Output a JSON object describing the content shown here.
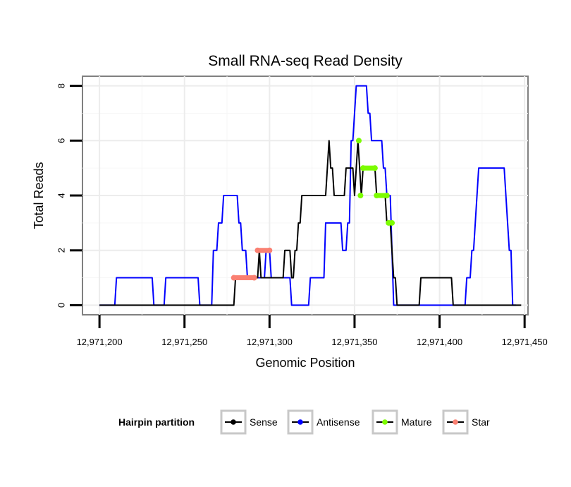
{
  "chart_data": {
    "type": "line",
    "title": "Small RNA-seq Read Density",
    "xlabel": "Genomic Position",
    "ylabel": "Total Reads",
    "xlim": [
      12971190,
      12971452
    ],
    "ylim": [
      -0.35,
      8.35
    ],
    "x_ticks": [
      12971200,
      12971250,
      12971300,
      12971350,
      12971400,
      12971450
    ],
    "x_tick_labels": [
      "12,971,200",
      "12,971,250",
      "12,971,300",
      "12,971,350",
      "12,971,400",
      "12,971,450"
    ],
    "y_ticks": [
      0,
      2,
      4,
      6,
      8
    ],
    "y_tick_labels": [
      "0",
      "2",
      "4",
      "6",
      "8"
    ],
    "grid": true,
    "legend": {
      "title": "Hairpin partition",
      "position": "bottom",
      "entries": [
        "Sense",
        "Antisense",
        "Mature",
        "Star"
      ]
    },
    "series": [
      {
        "name": "Antisense",
        "color": "#0000ff",
        "points": [
          [
            12971200,
            0
          ],
          [
            12971209,
            0
          ],
          [
            12971210,
            1
          ],
          [
            12971231,
            1
          ],
          [
            12971232,
            0
          ],
          [
            12971238,
            0
          ],
          [
            12971239,
            1
          ],
          [
            12971258,
            1
          ],
          [
            12971259,
            0
          ],
          [
            12971266,
            0
          ],
          [
            12971267,
            2
          ],
          [
            12971269,
            2
          ],
          [
            12971270,
            3
          ],
          [
            12971272,
            3
          ],
          [
            12971273,
            4
          ],
          [
            12971281,
            4
          ],
          [
            12971282,
            3
          ],
          [
            12971283,
            3
          ],
          [
            12971284,
            2
          ],
          [
            12971286,
            2
          ],
          [
            12971287,
            1
          ],
          [
            12971297,
            1
          ],
          [
            12971298,
            2
          ],
          [
            12971300,
            2
          ],
          [
            12971301,
            1
          ],
          [
            12971312,
            1
          ],
          [
            12971313,
            0
          ],
          [
            12971323,
            0
          ],
          [
            12971324,
            1
          ],
          [
            12971332,
            1
          ],
          [
            12971333,
            3
          ],
          [
            12971339,
            3
          ],
          [
            12971340,
            3
          ],
          [
            12971342,
            3
          ],
          [
            12971343,
            2
          ],
          [
            12971345,
            2
          ],
          [
            12971346,
            3
          ],
          [
            12971347,
            3
          ],
          [
            12971348,
            6
          ],
          [
            12971349,
            6
          ],
          [
            12971350,
            7
          ],
          [
            12971351,
            8
          ],
          [
            12971357,
            8
          ],
          [
            12971358,
            7
          ],
          [
            12971359,
            7
          ],
          [
            12971360,
            6
          ],
          [
            12971366,
            6
          ],
          [
            12971367,
            5
          ],
          [
            12971368,
            5
          ],
          [
            12971369,
            4
          ],
          [
            12971371,
            4
          ],
          [
            12971372,
            2
          ],
          [
            12971373,
            0
          ],
          [
            12971377,
            0
          ],
          [
            12971415,
            0
          ],
          [
            12971416,
            1
          ],
          [
            12971418,
            1
          ],
          [
            12971419,
            2
          ],
          [
            12971420,
            2
          ],
          [
            12971421,
            3
          ],
          [
            12971422,
            4
          ],
          [
            12971423,
            5
          ],
          [
            12971438,
            5
          ],
          [
            12971439,
            4
          ],
          [
            12971440,
            3
          ],
          [
            12971441,
            2
          ],
          [
            12971442,
            2
          ],
          [
            12971443,
            0
          ],
          [
            12971445,
            0
          ]
        ]
      },
      {
        "name": "Sense",
        "color": "#000000",
        "points": [
          [
            12971200,
            0
          ],
          [
            12971279,
            0
          ],
          [
            12971280,
            1
          ],
          [
            12971293,
            1
          ],
          [
            12971294,
            2
          ],
          [
            12971295,
            1
          ],
          [
            12971308,
            1
          ],
          [
            12971309,
            2
          ],
          [
            12971312,
            2
          ],
          [
            12971313,
            1
          ],
          [
            12971314,
            1
          ],
          [
            12971315,
            2
          ],
          [
            12971316,
            2
          ],
          [
            12971317,
            3
          ],
          [
            12971318,
            3
          ],
          [
            12971319,
            4
          ],
          [
            12971333,
            4
          ],
          [
            12971334,
            5
          ],
          [
            12971335,
            6
          ],
          [
            12971336,
            5
          ],
          [
            12971337,
            5
          ],
          [
            12971338,
            4
          ],
          [
            12971344,
            4
          ],
          [
            12971345,
            5
          ],
          [
            12971349,
            5
          ],
          [
            12971350,
            4
          ],
          [
            12971351,
            5
          ],
          [
            12971352,
            6
          ],
          [
            12971353,
            5
          ],
          [
            12971354,
            4
          ],
          [
            12971355,
            5
          ],
          [
            12971362,
            5
          ],
          [
            12971363,
            4
          ],
          [
            12971367,
            4
          ],
          [
            12971368,
            4
          ],
          [
            12971369,
            3
          ],
          [
            12971370,
            3
          ],
          [
            12971371,
            3
          ],
          [
            12971372,
            2
          ],
          [
            12971373,
            1
          ],
          [
            12971374,
            1
          ],
          [
            12971375,
            0
          ],
          [
            12971388,
            0
          ],
          [
            12971389,
            1
          ],
          [
            12971407,
            1
          ],
          [
            12971408,
            0
          ],
          [
            12971448,
            0
          ]
        ]
      },
      {
        "name": "Mature",
        "color": "#7cfc00",
        "points": [
          [
            12971352.5,
            6
          ],
          [
            12971353.5,
            4
          ],
          [
            12971355,
            5
          ],
          [
            12971362,
            5
          ],
          [
            12971363,
            4
          ],
          [
            12971369,
            4
          ],
          [
            12971370,
            3
          ],
          [
            12971372,
            3
          ]
        ]
      },
      {
        "name": "Star",
        "color": "#fa8072",
        "points": [
          [
            12971279,
            1
          ],
          [
            12971291,
            1
          ],
          [
            12971293,
            2
          ],
          [
            12971300,
            2
          ]
        ]
      }
    ]
  }
}
